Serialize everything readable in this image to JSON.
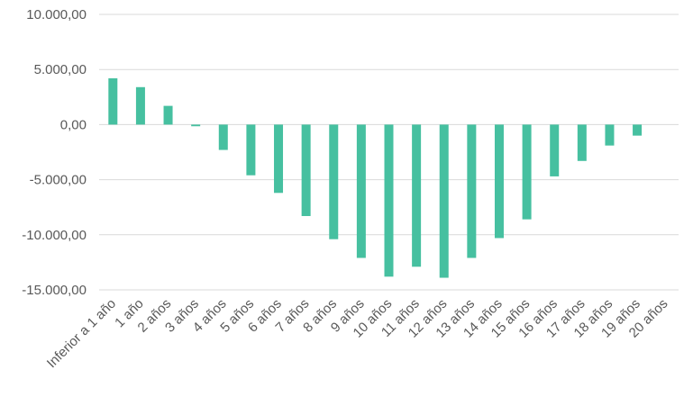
{
  "chart_data": {
    "type": "bar",
    "title": "",
    "xlabel": "",
    "ylabel": "",
    "ylim": [
      -15000,
      10000
    ],
    "y_ticks": [
      {
        "value": 10000,
        "label": "10.000,00"
      },
      {
        "value": 5000,
        "label": "5.000,00"
      },
      {
        "value": 0,
        "label": "0,00"
      },
      {
        "value": -5000,
        "label": "-5.000,00"
      },
      {
        "value": -10000,
        "label": "-10.000,00"
      },
      {
        "value": -15000,
        "label": "-15.000,00"
      }
    ],
    "grid": true,
    "legend": "none",
    "bar_color": "#46c0a0",
    "categories": [
      "Inferior a 1 año",
      "1 año",
      "2 años",
      "3 años",
      "4 años",
      "5 años",
      "6 años",
      "7 años",
      "8 años",
      "9 años",
      "10 años",
      "11 años",
      "12 años",
      "13 años",
      "14 años",
      "15 años",
      "16 años",
      "17 años",
      "18 años",
      "19 años",
      "20 años"
    ],
    "values": [
      4200,
      3400,
      1700,
      -150,
      -2300,
      -4600,
      -6200,
      -8300,
      -10400,
      -12100,
      -13800,
      -12900,
      -13900,
      -12100,
      -10300,
      -8600,
      -4700,
      -3300,
      -1900,
      -1000,
      0
    ]
  }
}
